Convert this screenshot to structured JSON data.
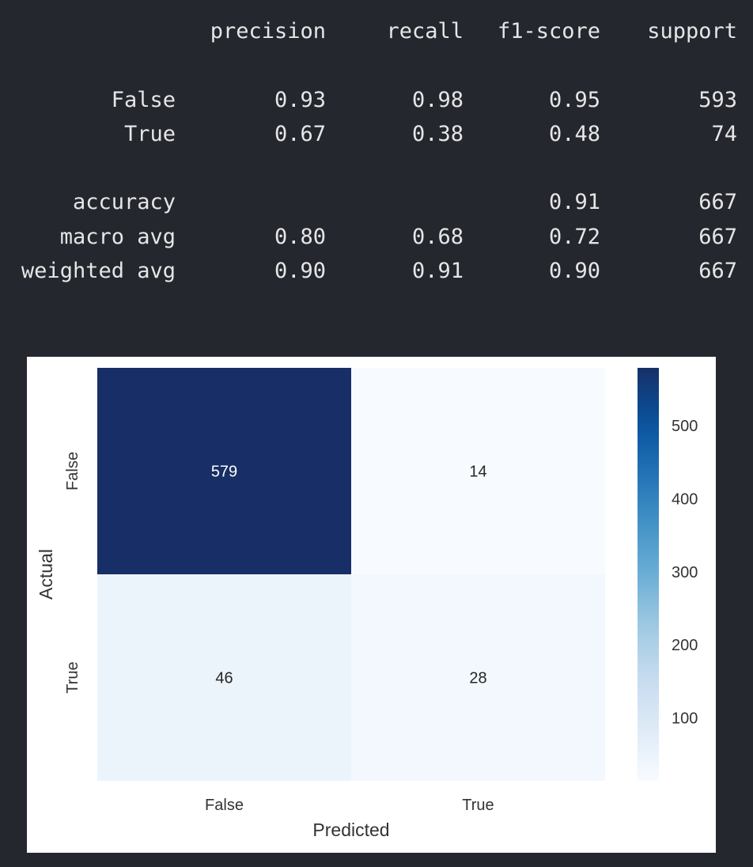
{
  "report": {
    "headers": [
      "precision",
      "recall",
      "f1-score",
      "support"
    ],
    "rows": [
      {
        "label": "False",
        "values": [
          "0.93",
          "0.98",
          "0.95",
          "593"
        ]
      },
      {
        "label": "True",
        "values": [
          "0.67",
          "0.38",
          "0.48",
          "74"
        ]
      },
      {
        "label": "accuracy",
        "values": [
          "",
          "",
          "0.91",
          "667"
        ]
      },
      {
        "label": "macro avg",
        "values": [
          "0.80",
          "0.68",
          "0.72",
          "667"
        ]
      },
      {
        "label": "weighted avg",
        "values": [
          "0.90",
          "0.91",
          "0.90",
          "667"
        ]
      }
    ]
  },
  "chart_data": {
    "type": "heatmap",
    "xlabel": "Predicted",
    "ylabel": "Actual",
    "x_categories": [
      "False",
      "True"
    ],
    "y_categories": [
      "False",
      "True"
    ],
    "values": [
      [
        579,
        14
      ],
      [
        46,
        28
      ]
    ],
    "colormap": "Blues",
    "colorbar": {
      "range": [
        14,
        579
      ],
      "ticks": [
        100,
        200,
        300,
        400,
        500
      ]
    },
    "colors": {
      "high": "#172f66",
      "low": "#f7fbff"
    }
  }
}
